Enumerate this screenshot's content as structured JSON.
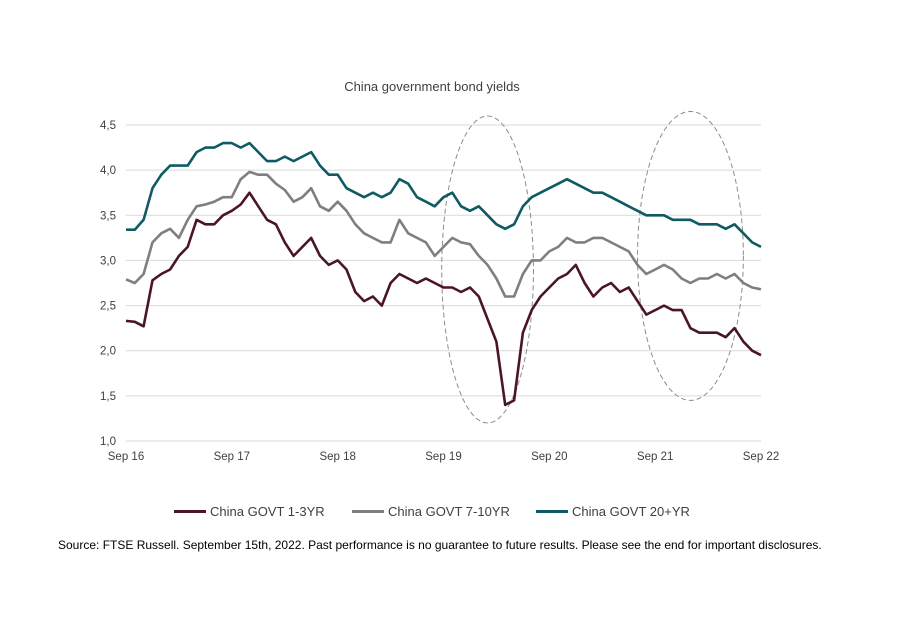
{
  "chart_data": {
    "type": "line",
    "title": "China government bond yields",
    "xlabel": "",
    "ylabel": "",
    "x_tick_labels": [
      "Sep 16",
      "Sep 17",
      "Sep 18",
      "Sep 19",
      "Sep 20",
      "Sep 21",
      "Sep 22"
    ],
    "y_tick_labels": [
      "1,0",
      "1,5",
      "2,0",
      "2,5",
      "3,0",
      "3,5",
      "4,0",
      "4,5"
    ],
    "y_ticks": [
      1.0,
      1.5,
      2.0,
      2.5,
      3.0,
      3.5,
      4.0,
      4.5
    ],
    "ylim": [
      1.0,
      4.5
    ],
    "xlim": [
      "2016-09",
      "2022-09"
    ],
    "grid": true,
    "legend_position": "bottom",
    "colors": {
      "1-3YR": "#4a1529",
      "7-10YR": "#7f7f7f",
      "20+YR": "#0f5a63"
    },
    "x": [
      "2016-09",
      "2016-10",
      "2016-11",
      "2016-12",
      "2017-01",
      "2017-02",
      "2017-03",
      "2017-04",
      "2017-05",
      "2017-06",
      "2017-07",
      "2017-08",
      "2017-09",
      "2017-10",
      "2017-11",
      "2017-12",
      "2018-01",
      "2018-02",
      "2018-03",
      "2018-04",
      "2018-05",
      "2018-06",
      "2018-07",
      "2018-08",
      "2018-09",
      "2018-10",
      "2018-11",
      "2018-12",
      "2019-01",
      "2019-02",
      "2019-03",
      "2019-04",
      "2019-05",
      "2019-06",
      "2019-07",
      "2019-08",
      "2019-09",
      "2019-10",
      "2019-11",
      "2019-12",
      "2020-01",
      "2020-02",
      "2020-03",
      "2020-04",
      "2020-05",
      "2020-06",
      "2020-07",
      "2020-08",
      "2020-09",
      "2020-10",
      "2020-11",
      "2020-12",
      "2021-01",
      "2021-02",
      "2021-03",
      "2021-04",
      "2021-05",
      "2021-06",
      "2021-07",
      "2021-08",
      "2021-09",
      "2021-10",
      "2021-11",
      "2021-12",
      "2022-01",
      "2022-02",
      "2022-03",
      "2022-04",
      "2022-05",
      "2022-06",
      "2022-07",
      "2022-08",
      "2022-09"
    ],
    "series": [
      {
        "name": "China GOVT 1-3YR",
        "values": [
          2.33,
          2.32,
          2.27,
          2.78,
          2.85,
          2.9,
          3.05,
          3.15,
          3.45,
          3.4,
          3.4,
          3.5,
          3.55,
          3.62,
          3.75,
          3.6,
          3.45,
          3.4,
          3.2,
          3.05,
          3.15,
          3.25,
          3.05,
          2.95,
          3.0,
          2.9,
          2.65,
          2.55,
          2.6,
          2.5,
          2.75,
          2.85,
          2.8,
          2.75,
          2.8,
          2.75,
          2.7,
          2.7,
          2.65,
          2.7,
          2.6,
          2.35,
          2.1,
          1.4,
          1.45,
          2.2,
          2.45,
          2.6,
          2.7,
          2.8,
          2.85,
          2.95,
          2.75,
          2.6,
          2.7,
          2.75,
          2.65,
          2.7,
          2.55,
          2.4,
          2.45,
          2.5,
          2.45,
          2.45,
          2.25,
          2.2,
          2.2,
          2.2,
          2.15,
          2.25,
          2.1,
          2.0,
          1.95
        ]
      },
      {
        "name": "China GOVT 7-10YR",
        "values": [
          2.79,
          2.75,
          2.85,
          3.2,
          3.3,
          3.35,
          3.25,
          3.45,
          3.6,
          3.62,
          3.65,
          3.7,
          3.7,
          3.9,
          3.98,
          3.95,
          3.95,
          3.85,
          3.78,
          3.65,
          3.7,
          3.8,
          3.6,
          3.55,
          3.65,
          3.55,
          3.4,
          3.3,
          3.25,
          3.2,
          3.2,
          3.45,
          3.3,
          3.25,
          3.2,
          3.05,
          3.15,
          3.25,
          3.2,
          3.18,
          3.05,
          2.95,
          2.8,
          2.6,
          2.6,
          2.85,
          3.0,
          3.0,
          3.1,
          3.15,
          3.25,
          3.2,
          3.2,
          3.25,
          3.25,
          3.2,
          3.15,
          3.1,
          2.95,
          2.85,
          2.9,
          2.95,
          2.9,
          2.8,
          2.75,
          2.8,
          2.8,
          2.85,
          2.8,
          2.85,
          2.75,
          2.7,
          2.68
        ]
      },
      {
        "name": "China GOVT 20+YR",
        "values": [
          3.34,
          3.34,
          3.45,
          3.8,
          3.95,
          4.05,
          4.05,
          4.05,
          4.2,
          4.25,
          4.25,
          4.3,
          4.3,
          4.25,
          4.3,
          4.2,
          4.1,
          4.1,
          4.15,
          4.1,
          4.15,
          4.2,
          4.05,
          3.95,
          3.95,
          3.8,
          3.75,
          3.7,
          3.75,
          3.7,
          3.75,
          3.9,
          3.85,
          3.7,
          3.65,
          3.6,
          3.7,
          3.75,
          3.6,
          3.55,
          3.6,
          3.5,
          3.4,
          3.35,
          3.4,
          3.6,
          3.7,
          3.75,
          3.8,
          3.85,
          3.9,
          3.85,
          3.8,
          3.75,
          3.75,
          3.7,
          3.65,
          3.6,
          3.55,
          3.5,
          3.5,
          3.5,
          3.45,
          3.45,
          3.45,
          3.4,
          3.4,
          3.4,
          3.35,
          3.4,
          3.3,
          3.2,
          3.15
        ]
      }
    ],
    "annotations": [
      {
        "type": "ellipse",
        "x_center": "2020-02",
        "y_center": 2.9,
        "x_radius_months": 5.2,
        "y_radius": 1.7
      },
      {
        "type": "ellipse",
        "x_center": "2022-01",
        "y_center": 3.05,
        "x_radius_months": 6.0,
        "y_radius": 1.6
      }
    ]
  },
  "source": "Source: FTSE Russell. September 15th, 2022. Past performance is no guarantee to future results. Please see the end for important disclosures."
}
